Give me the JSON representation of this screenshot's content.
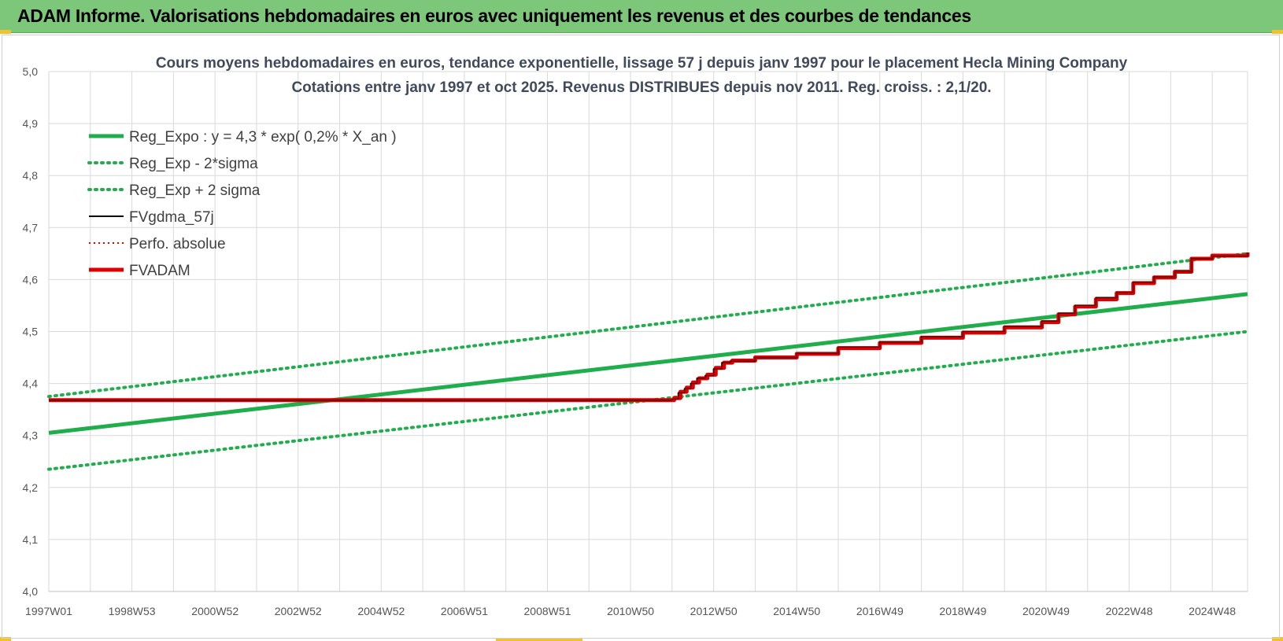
{
  "banner": {
    "title": "ADAM Informe. Valorisations hebdomadaires en euros avec uniquement les revenus et des courbes de tendances"
  },
  "colors": {
    "banner_bg": "#7dc77a",
    "accent_yellow": "#f2c12e",
    "green": "#1fae4b",
    "dotted_green": "#1fae4b",
    "black": "#000000",
    "red": "#e00000",
    "grid": "#d9d9d9"
  },
  "chart_data": {
    "type": "line",
    "title_lines": [
      "Cours moyens hebdomadaires en euros, tendance exponentielle, lissage 57 j depuis janv 1997 pour le placement Hecla Mining Company",
      "Cotations entre janv 1997 et oct 2025. Revenus DISTRIBUES depuis nov 2011. Reg. croiss. : 2,1/20."
    ],
    "x_range_years": [
      1997.0,
      2025.85
    ],
    "x_tick_labels": [
      "1997W01",
      "1998W53",
      "2000W52",
      "2002W52",
      "2004W52",
      "2006W51",
      "2008W51",
      "2010W50",
      "2012W50",
      "2014W50",
      "2016W49",
      "2018W49",
      "2020W49",
      "2022W48",
      "2024W48"
    ],
    "x_ticks_years": [
      1997.0,
      1999.0,
      2001.0,
      2003.0,
      2005.0,
      2007.0,
      2009.0,
      2011.0,
      2013.0,
      2015.0,
      2017.0,
      2019.0,
      2021.0,
      2023.0,
      2025.0
    ],
    "ylim": [
      4.0,
      5.0
    ],
    "y_ticks": [
      "4,0",
      "4,1",
      "4,2",
      "4,3",
      "4,4",
      "4,5",
      "4,6",
      "4,7",
      "4,8",
      "4,9",
      "5,0"
    ],
    "y_tick_values": [
      4.0,
      4.1,
      4.2,
      4.3,
      4.4,
      4.5,
      4.6,
      4.7,
      4.8,
      4.9,
      5.0
    ],
    "grid": true,
    "legend_position": "top-left",
    "legend": [
      {
        "label": "Reg_Expo : y = 4,3 * exp( 0,2% *  X_an )",
        "style": "solid-green"
      },
      {
        "label": "Reg_Exp - 2*sigma",
        "style": "dotted-green"
      },
      {
        "label": "Reg_Exp + 2 sigma",
        "style": "dotted-green"
      },
      {
        "label": "FVgdma_57j",
        "style": "solid-black"
      },
      {
        "label": "Perfo. absolue",
        "style": "dotted-red"
      },
      {
        "label": "FVADAM",
        "style": "solid-red"
      }
    ],
    "series": [
      {
        "name": "Reg_Expo : y = 4,3 * exp( 0,2% *  X_an )",
        "x": [
          1997.0,
          2025.85
        ],
        "y": [
          4.305,
          4.572
        ]
      },
      {
        "name": "Reg_Exp - 2*sigma",
        "x": [
          1997.0,
          2025.85
        ],
        "y": [
          4.235,
          4.5
        ]
      },
      {
        "name": "Reg_Exp + 2 sigma",
        "x": [
          1997.0,
          2025.85
        ],
        "y": [
          4.375,
          4.65
        ]
      },
      {
        "name": "FVgdma_57j",
        "x": [
          1997.0,
          2011.9,
          2012.0,
          2012.15,
          2012.3,
          2012.45,
          2012.6,
          2012.8,
          2013.0,
          2013.2,
          2013.4,
          2014.0,
          2015.0,
          2016.0,
          2017.0,
          2018.0,
          2019.0,
          2020.0,
          2020.9,
          2021.3,
          2021.7,
          2022.2,
          2022.7,
          2023.1,
          2023.6,
          2024.1,
          2024.5,
          2025.0,
          2025.85
        ],
        "y": [
          4.368,
          4.368,
          4.37,
          4.382,
          4.39,
          4.4,
          4.41,
          4.415,
          4.428,
          4.44,
          4.443,
          4.45,
          4.458,
          4.47,
          4.48,
          4.49,
          4.5,
          4.51,
          4.52,
          4.535,
          4.55,
          4.565,
          4.575,
          4.595,
          4.605,
          4.615,
          4.64,
          4.645,
          4.652
        ]
      },
      {
        "name": "FVADAM",
        "x": [
          1997.0,
          2011.95,
          2012.05,
          2012.2,
          2012.35,
          2012.5,
          2012.65,
          2012.85,
          2013.05,
          2013.25,
          2013.45,
          2014.0,
          2015.0,
          2016.0,
          2017.0,
          2018.0,
          2019.0,
          2020.0,
          2020.9,
          2021.3,
          2021.7,
          2022.2,
          2022.7,
          2023.1,
          2023.6,
          2024.1,
          2024.5,
          2025.0,
          2025.85
        ],
        "y": [
          4.368,
          4.368,
          4.372,
          4.384,
          4.392,
          4.402,
          4.41,
          4.417,
          4.43,
          4.44,
          4.444,
          4.45,
          4.457,
          4.468,
          4.478,
          4.488,
          4.498,
          4.508,
          4.518,
          4.533,
          4.548,
          4.562,
          4.574,
          4.593,
          4.604,
          4.615,
          4.64,
          4.646,
          4.652
        ]
      }
    ]
  }
}
